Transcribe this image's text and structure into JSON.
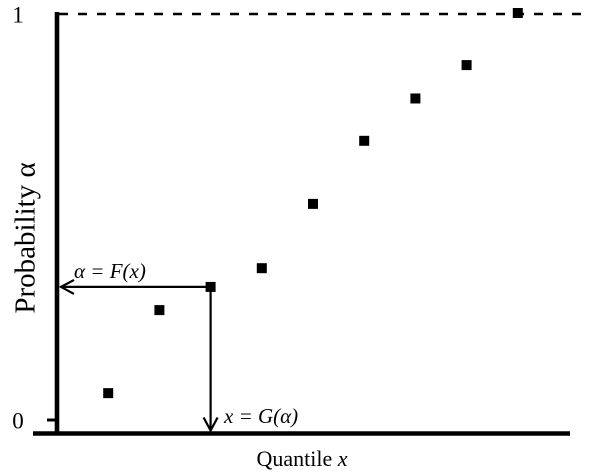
{
  "figure": {
    "y_tick_top": "1",
    "y_tick_bottom": "0",
    "y_axis_label_text": "Probability",
    "y_axis_label_var": "α",
    "x_axis_label_text": "Quantile",
    "x_axis_label_var": "x",
    "annotation_f": "α = F(x)",
    "annotation_g": "x = G(α)",
    "colors": {
      "ink": "#000000",
      "background": "#ffffff"
    }
  },
  "chart_data": {
    "type": "scatter",
    "title": "",
    "xlabel": "Quantile x",
    "ylabel": "Probability α",
    "ylim": [
      0,
      1
    ],
    "y_ticks": [
      "0",
      "1"
    ],
    "x_ticks": [],
    "grid": false,
    "legend": null,
    "marker": "filled-black-square",
    "reference_line": {
      "y": 1.0,
      "style": "dashed"
    },
    "points": [
      {
        "x": 1,
        "alpha": 0.066
      },
      {
        "x": 2,
        "alpha": 0.27
      },
      {
        "x": 3,
        "alpha": 0.327
      },
      {
        "x": 4,
        "alpha": 0.373
      },
      {
        "x": 5,
        "alpha": 0.531
      },
      {
        "x": 6,
        "alpha": 0.686
      },
      {
        "x": 7,
        "alpha": 0.79
      },
      {
        "x": 8,
        "alpha": 0.872
      },
      {
        "x": 9,
        "alpha": 1.0
      }
    ],
    "annotations": [
      {
        "text": "α = F(x)",
        "arrow": "horizontal-to-y-axis",
        "point_index": 2
      },
      {
        "text": "x = G(α)",
        "arrow": "vertical-to-x-axis",
        "point_index": 2
      }
    ]
  }
}
